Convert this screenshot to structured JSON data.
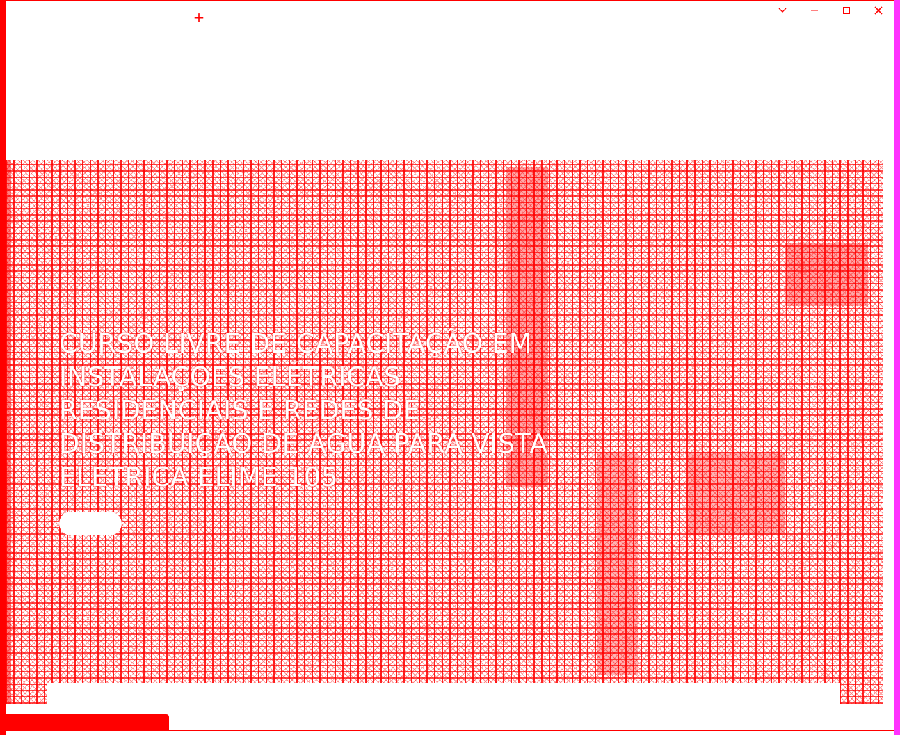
{
  "window": {
    "new_tab_symbol": "+",
    "controls": [
      {
        "name": "tab-search-dropdown",
        "icon": "chevron-down-icon"
      },
      {
        "name": "minimize",
        "icon": "minimize-icon"
      },
      {
        "name": "maximize",
        "icon": "maximize-icon"
      },
      {
        "name": "close",
        "icon": "close-icon"
      }
    ]
  },
  "hero": {
    "title": "CURSO LIVRE DE CAPACITAÇÃO EM INSTALAÇÕES ELÉTRICAS RESIDENCIAIS E REDES DE DISTRIBUIÇÃO DE ÁGUA PARA VISTA ELÉTRICA ELIME 105",
    "cta_label": ""
  },
  "colors": {
    "accent": "#ff0000",
    "frame_right": "#ff33ff",
    "background": "#ffffff"
  }
}
